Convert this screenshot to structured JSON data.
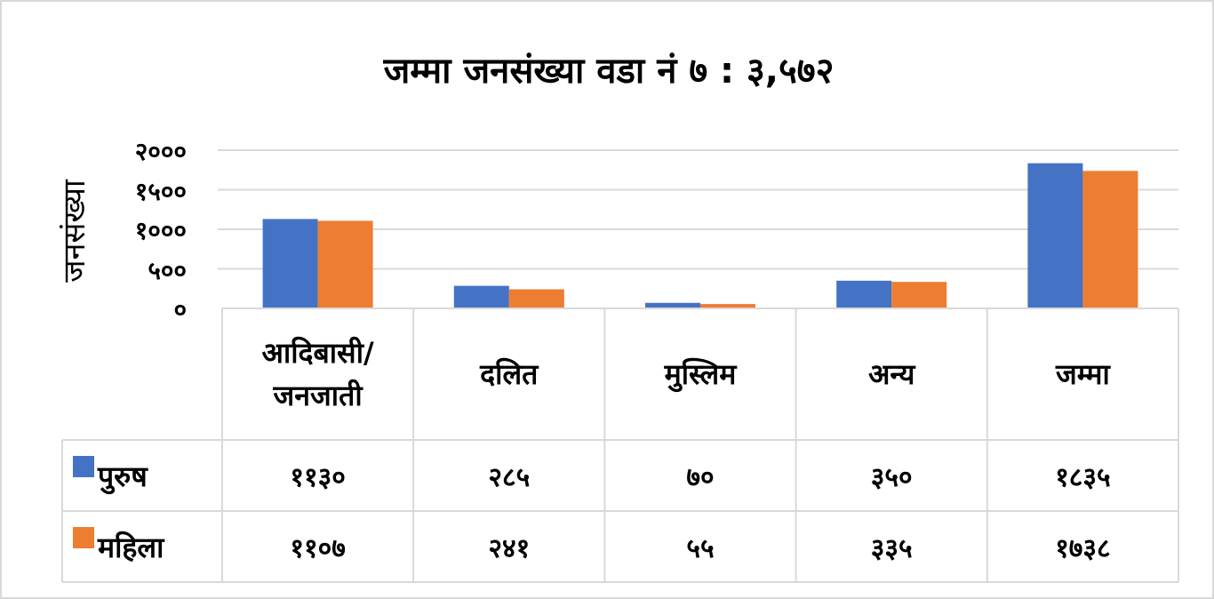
{
  "chart_data": {
    "type": "bar",
    "title": "जम्मा जनसंख्या वडा नं ७ : ३,५७२",
    "y_label": "जनसंख्या",
    "categories": [
      "आदिबासी/ जनजाती",
      "दलित",
      "मुस्लिम",
      "अन्य",
      "जम्मा"
    ],
    "series": [
      {
        "name": "पुरुष",
        "color": "#4472c4",
        "values": [
          1130,
          285,
          70,
          350,
          1835
        ],
        "value_labels": [
          "११३०",
          "२८५",
          "७०",
          "३५०",
          "१८३५"
        ]
      },
      {
        "name": "महिला",
        "color": "#ed7d31",
        "values": [
          1107,
          241,
          55,
          335,
          1738
        ],
        "value_labels": [
          "११०७",
          "२४१",
          "५५",
          "३३५",
          "१७३८"
        ]
      }
    ],
    "ylim": [
      0,
      2000
    ],
    "yticks": [
      {
        "value": 0,
        "label": "०"
      },
      {
        "value": 500,
        "label": "५००"
      },
      {
        "value": 1000,
        "label": "१०००"
      },
      {
        "value": 1500,
        "label": "१५००"
      },
      {
        "value": 2000,
        "label": "२०००"
      }
    ],
    "grid": true
  }
}
